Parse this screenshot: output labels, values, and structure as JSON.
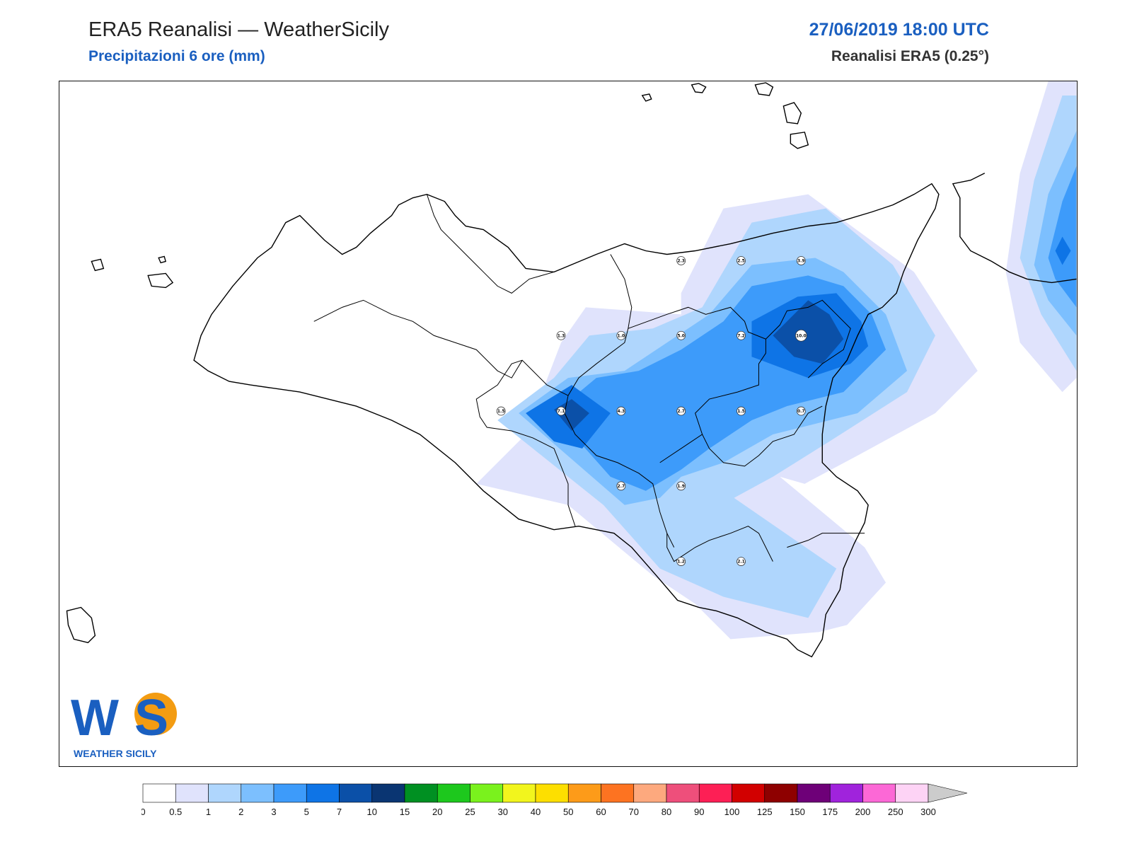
{
  "header": {
    "title": "ERA5 Reanalisi — WeatherSicily",
    "subtitle": "Precipitazioni 6 ore (mm)",
    "datetime": "27/06/2019 18:00 UTC",
    "source": "Reanalisi ERA5 (0.25°)"
  },
  "logo": {
    "letters": "WS",
    "text": "WEATHER SICILY"
  },
  "colors": {
    "title_blue": "#1a5fc0",
    "land_fill": "#ffffff",
    "coast_line": "#000000"
  },
  "legend": {
    "boundaries": [
      "0",
      "0.5",
      "1",
      "2",
      "3",
      "5",
      "7",
      "10",
      "15",
      "20",
      "25",
      "30",
      "40",
      "50",
      "60",
      "70",
      "80",
      "90",
      "100",
      "125",
      "150",
      "175",
      "200",
      "250",
      "300"
    ],
    "colors": [
      "#ffffff",
      "#e0e3fc",
      "#afd6fd",
      "#7cbffe",
      "#3d9bfa",
      "#0e74e6",
      "#0b50a8",
      "#0a3572",
      "#009022",
      "#1dc81d",
      "#7af21d",
      "#f2f51d",
      "#fddf00",
      "#fd9b19",
      "#fd7321",
      "#fda97e",
      "#ee4f7b",
      "#fd1f55",
      "#d20000",
      "#8e0000",
      "#6e0078",
      "#a023dc",
      "#fc68d6",
      "#fdd3f5"
    ],
    "extend_color": "#cccccc"
  },
  "stations": [
    {
      "label": "2.3",
      "value": 2.3
    },
    {
      "label": "2.5",
      "value": 2.5
    },
    {
      "label": "3.9",
      "value": 3.9
    },
    {
      "label": "1.3",
      "value": 1.3
    },
    {
      "label": "1.0",
      "value": 1.0
    },
    {
      "label": "5.0",
      "value": 5.0
    },
    {
      "label": "7.2",
      "value": 7.2
    },
    {
      "label": "10.0",
      "value": 10.0
    },
    {
      "label": "1.5",
      "value": 1.5
    },
    {
      "label": "7.1",
      "value": 7.1
    },
    {
      "label": "4.3",
      "value": 4.3
    },
    {
      "label": "2.7",
      "value": 2.7
    },
    {
      "label": "1.5",
      "value": 1.5
    },
    {
      "label": "0.7",
      "value": 0.7
    },
    {
      "label": "2.7",
      "value": 2.7
    },
    {
      "label": "1.9",
      "value": 1.9
    },
    {
      "label": "1.2",
      "value": 1.2
    },
    {
      "label": "2.1",
      "value": 2.1
    }
  ]
}
